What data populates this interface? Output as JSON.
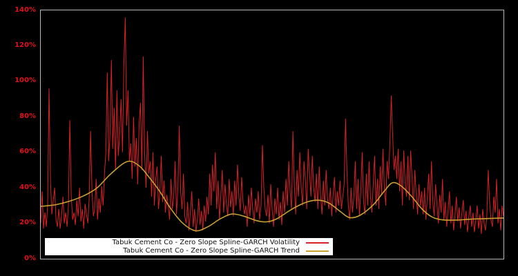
{
  "figure": {
    "background_color": "#000000",
    "plot_border_color": "#b9b9b9"
  },
  "chart": {
    "y_axis": {
      "ticks": [
        "0%",
        "20%",
        "40%",
        "60%",
        "80%",
        "100%",
        "120%",
        "140%"
      ],
      "tick_values": [
        0,
        20,
        40,
        60,
        80,
        100,
        120,
        140
      ],
      "tick_color": "#e0101e",
      "min": 0,
      "max": 140
    },
    "x_axis": {
      "ticks": []
    }
  },
  "legend": {
    "background": "#ffffff",
    "items": [
      {
        "label": "Tabuk Cement Co - Zero Slope Spline-GARCH Volatility",
        "color": "#d62128"
      },
      {
        "label": "Tabuk Cement Co - Zero Slope Spline-GARCH Trend",
        "color": "#c9a032"
      }
    ]
  },
  "chart_data": {
    "type": "line",
    "title": "",
    "xlabel": "",
    "ylabel": "",
    "ylim": [
      0,
      140
    ],
    "y_unit": "percent",
    "grid": false,
    "legend_position": "bottom-left",
    "series": [
      {
        "name": "Tabuk Cement Co - Zero Slope Spline-GARCH Volatility",
        "color": "#d62128",
        "style": "spiky",
        "values": [
          20,
          38,
          17,
          26,
          18,
          30,
          96,
          45,
          25,
          33,
          40,
          22,
          18,
          28,
          17,
          24,
          35,
          20,
          26,
          18,
          30,
          78,
          36,
          22,
          26,
          19,
          33,
          24,
          40,
          21,
          28,
          17,
          31,
          25,
          20,
          35,
          72,
          38,
          24,
          28,
          45,
          22,
          34,
          26,
          41,
          30,
          48,
          60,
          105,
          55,
          70,
          112,
          62,
          85,
          50,
          95,
          58,
          70,
          90,
          60,
          110,
          136,
          75,
          95,
          55,
          65,
          45,
          80,
          52,
          68,
          42,
          75,
          88,
          50,
          114,
          60,
          40,
          72,
          48,
          55,
          35,
          60,
          30,
          45,
          52,
          28,
          38,
          58,
          32,
          44,
          26,
          36,
          30,
          22,
          45,
          28,
          35,
          55,
          25,
          40,
          75,
          38,
          28,
          48,
          24,
          20,
          32,
          16,
          26,
          38,
          18,
          28,
          15,
          22,
          34,
          19,
          27,
          16,
          30,
          21,
          35,
          25,
          48,
          30,
          53,
          38,
          60,
          28,
          44,
          22,
          36,
          50,
          26,
          42,
          31,
          24,
          45,
          29,
          38,
          24,
          44,
          30,
          53,
          35,
          27,
          46,
          32,
          25,
          30,
          18,
          36,
          24,
          40,
          28,
          20,
          34,
          26,
          38,
          22,
          30,
          64,
          40,
          28,
          24,
          36,
          20,
          42,
          28,
          18,
          34,
          25,
          40,
          22,
          32,
          19,
          38,
          26,
          45,
          30,
          55,
          38,
          28,
          72,
          42,
          25,
          50,
          35,
          60,
          40,
          30,
          55,
          45,
          28,
          62,
          48,
          35,
          58,
          40,
          32,
          48,
          28,
          52,
          36,
          25,
          44,
          30,
          50,
          34,
          28,
          40,
          24,
          36,
          46,
          26,
          38,
          30,
          44,
          28,
          35,
          42,
          79,
          50,
          30,
          22,
          40,
          26,
          35,
          55,
          28,
          45,
          24,
          38,
          60,
          32,
          25,
          48,
          30,
          55,
          35,
          26,
          42,
          58,
          30,
          45,
          28,
          52,
          36,
          62,
          40,
          30,
          55,
          45,
          65,
          92,
          70,
          50,
          58,
          45,
          62,
          38,
          55,
          30,
          61,
          42,
          35,
          58,
          33,
          61,
          45,
          28,
          50,
          36,
          25,
          42,
          30,
          38,
          25,
          40,
          22,
          35,
          48,
          28,
          55,
          32,
          24,
          42,
          30,
          20,
          36,
          26,
          45,
          22,
          32,
          18,
          28,
          38,
          20,
          30,
          16,
          25,
          35,
          21,
          29,
          17,
          26,
          33,
          19,
          27,
          15,
          24,
          30,
          18,
          26,
          15,
          22,
          30,
          17,
          25,
          14,
          28,
          20,
          16,
          24,
          50,
          32,
          22,
          18,
          35,
          26,
          45,
          20,
          28,
          16,
          30,
          24
        ]
      },
      {
        "name": "Tabuk Cement Co - Zero Slope Spline-GARCH Trend",
        "color": "#c9a032",
        "style": "smooth",
        "control_points": [
          [
            0.0,
            29.5
          ],
          [
            0.033,
            30.5
          ],
          [
            0.063,
            32.5
          ],
          [
            0.093,
            35.5
          ],
          [
            0.122,
            40.0
          ],
          [
            0.152,
            48.0
          ],
          [
            0.187,
            54.8
          ],
          [
            0.212,
            52.5
          ],
          [
            0.234,
            46.0
          ],
          [
            0.257,
            38.0
          ],
          [
            0.279,
            29.0
          ],
          [
            0.305,
            20.5
          ],
          [
            0.334,
            15.8
          ],
          [
            0.361,
            18.0
          ],
          [
            0.388,
            22.5
          ],
          [
            0.413,
            25.2
          ],
          [
            0.439,
            24.0
          ],
          [
            0.466,
            21.5
          ],
          [
            0.488,
            20.8
          ],
          [
            0.51,
            22.5
          ],
          [
            0.54,
            27.5
          ],
          [
            0.57,
            31.5
          ],
          [
            0.597,
            33.0
          ],
          [
            0.622,
            31.5
          ],
          [
            0.648,
            26.5
          ],
          [
            0.667,
            23.2
          ],
          [
            0.69,
            24.5
          ],
          [
            0.719,
            30.5
          ],
          [
            0.742,
            38.0
          ],
          [
            0.76,
            42.8
          ],
          [
            0.779,
            41.0
          ],
          [
            0.802,
            35.0
          ],
          [
            0.824,
            28.0
          ],
          [
            0.846,
            23.5
          ],
          [
            0.869,
            21.9
          ],
          [
            0.899,
            21.8
          ],
          [
            0.928,
            22.3
          ],
          [
            0.958,
            22.6
          ],
          [
            1.0,
            23.0
          ]
        ]
      }
    ]
  }
}
